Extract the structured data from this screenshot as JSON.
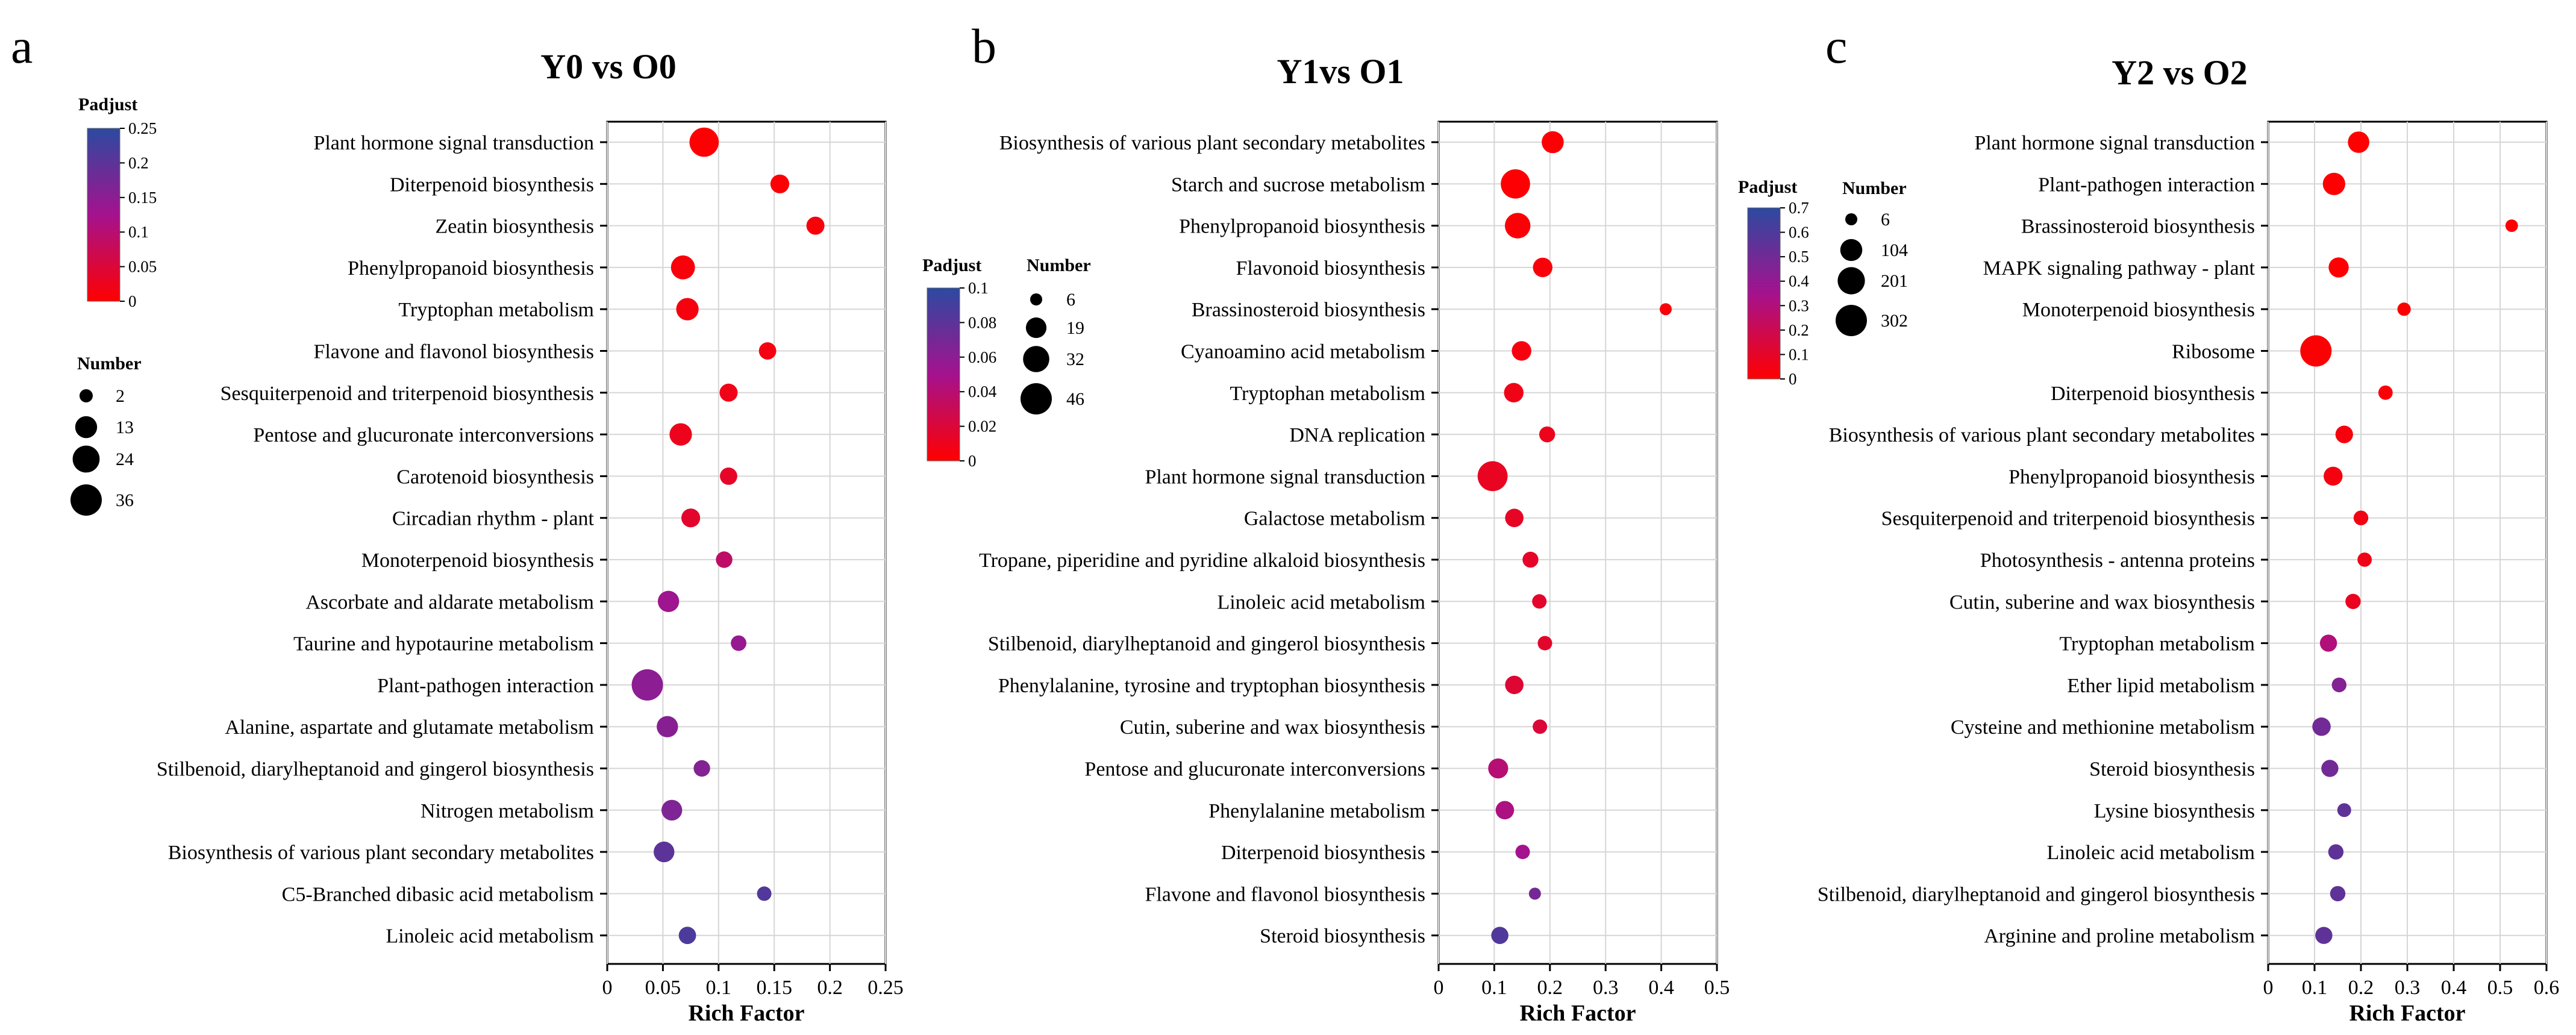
{
  "chart_data": [
    {
      "type": "scatter",
      "panel_letter": "a",
      "title": "Y0 vs O0",
      "xlabel": "Rich Factor",
      "ylabel": "",
      "xlim": [
        0,
        0.25
      ],
      "xticks": [
        0,
        0.05,
        0.1,
        0.15,
        0.2,
        0.25
      ],
      "xtick_labels": [
        "0",
        "0.05",
        "0.1",
        "0.15",
        "0.2",
        "0.25"
      ],
      "grid": true,
      "color_legend": {
        "title": "Padjust",
        "min": 0,
        "max": 0.25,
        "ticks": [
          0,
          0.05,
          0.1,
          0.15,
          0.2,
          0.25
        ],
        "tick_labels": [
          "0",
          "0.05",
          "0.1",
          "0.15",
          "0.2",
          "0.25"
        ]
      },
      "size_legend": {
        "title": "Number",
        "values": [
          2,
          13,
          24,
          36
        ],
        "labels": [
          "2",
          "13",
          "24",
          "36"
        ]
      },
      "categories": [
        "Plant hormone signal transduction",
        "Diterpenoid biosynthesis",
        "Zeatin biosynthesis",
        "Phenylpropanoid biosynthesis",
        "Tryptophan metabolism",
        "Flavone and flavonol biosynthesis",
        "Sesquiterpenoid and triterpenoid biosynthesis",
        "Pentose and glucuronate interconversions",
        "Carotenoid biosynthesis",
        "Circadian rhythm - plant",
        "Monoterpenoid biosynthesis",
        "Ascorbate and aldarate metabolism",
        "Taurine and hypotaurine metabolism",
        "Plant-pathogen interaction",
        "Alanine, aspartate and glutamate metabolism",
        "Stilbenoid, diarylheptanoid and gingerol biosynthesis",
        "Nitrogen metabolism",
        "Biosynthesis of various plant secondary metabolites",
        "C5-Branched dibasic acid metabolism",
        "Linoleic acid metabolism"
      ],
      "x": [
        0.087,
        0.155,
        0.187,
        0.068,
        0.072,
        0.144,
        0.109,
        0.066,
        0.109,
        0.075,
        0.105,
        0.055,
        0.118,
        0.036,
        0.054,
        0.085,
        0.058,
        0.051,
        0.141,
        0.072
      ],
      "number": [
        30,
        8,
        7,
        17,
        14,
        6,
        7,
        14,
        6,
        8,
        5,
        12,
        4,
        36,
        12,
        5,
        11,
        11,
        3,
        6
      ],
      "padjust": [
        0.002,
        0.005,
        0.008,
        0.01,
        0.012,
        0.015,
        0.02,
        0.025,
        0.035,
        0.04,
        0.09,
        0.13,
        0.14,
        0.15,
        0.155,
        0.16,
        0.165,
        0.2,
        0.21,
        0.215
      ]
    },
    {
      "type": "scatter",
      "panel_letter": "b",
      "title": "Y1vs O1",
      "xlabel": "Rich Factor",
      "ylabel": "",
      "xlim": [
        0,
        0.5
      ],
      "xticks": [
        0,
        0.1,
        0.2,
        0.3,
        0.4,
        0.5
      ],
      "xtick_labels": [
        "0",
        "0.1",
        "0.2",
        "0.3",
        "0.4",
        "0.5"
      ],
      "grid": true,
      "color_legend": {
        "title": "Padjust",
        "min": 0,
        "max": 0.1,
        "ticks": [
          0,
          0.02,
          0.04,
          0.06,
          0.08,
          0.1
        ],
        "tick_labels": [
          "0",
          "0.02",
          "0.04",
          "0.06",
          "0.08",
          "0.1"
        ]
      },
      "size_legend": {
        "title": "Number",
        "values": [
          6,
          19,
          32,
          46
        ],
        "labels": [
          "6",
          "19",
          "32",
          "46"
        ]
      },
      "categories": [
        "Biosynthesis of various plant secondary metabolites",
        "Starch and sucrose metabolism",
        "Phenylpropanoid biosynthesis",
        "Flavonoid biosynthesis",
        "Brassinosteroid biosynthesis",
        "Cyanoamino acid metabolism",
        "Tryptophan metabolism",
        "DNA replication",
        "Plant hormone signal transduction",
        "Galactose metabolism",
        "Tropane, piperidine and pyridine alkaloid biosynthesis",
        "Linoleic acid metabolism",
        "Stilbenoid, diarylheptanoid and gingerol biosynthesis",
        "Phenylalanine, tyrosine and tryptophan biosynthesis",
        "Cutin, suberine and wax biosynthesis",
        "Pentose and glucuronate interconversions",
        "Phenylalanine metabolism",
        "Diterpenoid biosynthesis",
        "Flavone and flavonol biosynthesis",
        "Steroid biosynthesis"
      ],
      "x": [
        0.205,
        0.138,
        0.142,
        0.187,
        0.408,
        0.149,
        0.135,
        0.195,
        0.097,
        0.136,
        0.165,
        0.181,
        0.191,
        0.136,
        0.182,
        0.107,
        0.119,
        0.151,
        0.173,
        0.11
      ],
      "number": [
        22,
        40,
        30,
        17,
        6,
        17,
        17,
        11,
        42,
        15,
        11,
        9,
        9,
        15,
        9,
        18,
        15,
        9,
        6,
        13
      ],
      "padjust": [
        0.001,
        0.001,
        0.002,
        0.003,
        0.004,
        0.005,
        0.008,
        0.01,
        0.012,
        0.013,
        0.014,
        0.015,
        0.016,
        0.018,
        0.02,
        0.04,
        0.045,
        0.05,
        0.07,
        0.085
      ]
    },
    {
      "type": "scatter",
      "panel_letter": "c",
      "title": "Y2 vs O2",
      "xlabel": "Rich Factor",
      "ylabel": "",
      "xlim": [
        0,
        0.6
      ],
      "xticks": [
        0,
        0.1,
        0.2,
        0.3,
        0.4,
        0.5,
        0.6
      ],
      "xtick_labels": [
        "0",
        "0.1",
        "0.2",
        "0.3",
        "0.4",
        "0.5",
        "0.6"
      ],
      "grid": true,
      "color_legend": {
        "title": "Padjust",
        "min": 0,
        "max": 0.7,
        "ticks": [
          0,
          0.1,
          0.2,
          0.3,
          0.4,
          0.5,
          0.6,
          0.7
        ],
        "tick_labels": [
          "0",
          "0.1",
          "0.2",
          "0.3",
          "0.4",
          "0.5",
          "0.6",
          "0.7"
        ]
      },
      "size_legend": {
        "title": "Number",
        "values": [
          6,
          104,
          201,
          302
        ],
        "labels": [
          "6",
          "104",
          "201",
          "302"
        ]
      },
      "categories": [
        "Plant hormone signal transduction",
        "Plant-pathogen interaction",
        "Brassinosteroid biosynthesis",
        "MAPK signaling pathway - plant",
        "Monoterpenoid biosynthesis",
        "Ribosome",
        "Diterpenoid biosynthesis",
        "Biosynthesis of various plant secondary metabolites",
        "Phenylpropanoid biosynthesis",
        "Sesquiterpenoid and triterpenoid biosynthesis",
        "Photosynthesis - antenna proteins",
        "Cutin, suberine and wax biosynthesis",
        "Tryptophan metabolism",
        "Ether lipid metabolism",
        "Cysteine and methionine metabolism",
        "Steroid biosynthesis",
        "Lysine biosynthesis",
        "Linoleic acid metabolism",
        "Stilbenoid, diarylheptanoid and gingerol biosynthesis",
        "Arginine and proline metabolism"
      ],
      "x": [
        0.195,
        0.142,
        0.525,
        0.152,
        0.293,
        0.103,
        0.253,
        0.164,
        0.14,
        0.2,
        0.208,
        0.183,
        0.13,
        0.153,
        0.115,
        0.133,
        0.164,
        0.146,
        0.15,
        0.12
      ],
      "number": [
        95,
        110,
        8,
        75,
        12,
        302,
        18,
        45,
        60,
        20,
        18,
        25,
        40,
        20,
        55,
        40,
        15,
        25,
        25,
        40
      ],
      "padjust": [
        0.001,
        0.002,
        0.003,
        0.005,
        0.01,
        0.01,
        0.02,
        0.03,
        0.04,
        0.05,
        0.06,
        0.08,
        0.3,
        0.45,
        0.5,
        0.5,
        0.55,
        0.55,
        0.55,
        0.55
      ]
    }
  ]
}
